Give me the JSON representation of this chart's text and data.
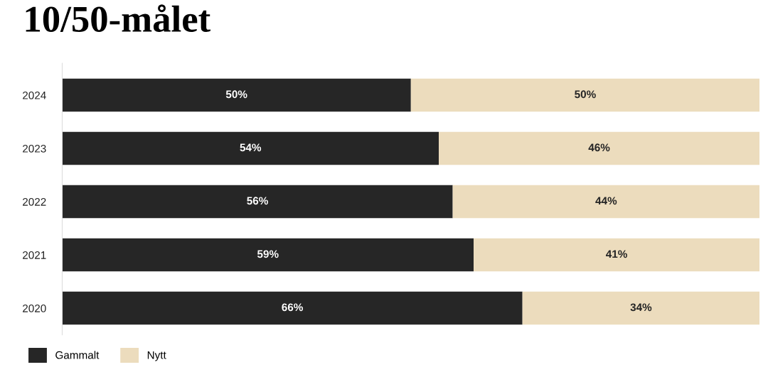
{
  "chart_data": {
    "type": "bar",
    "orientation": "horizontal",
    "stacked": true,
    "title": "10/50-målet",
    "categories": [
      "2024",
      "2023",
      "2022",
      "2021",
      "2020"
    ],
    "series": [
      {
        "name": "Gammalt",
        "color": "#262626",
        "values": [
          50,
          54,
          56,
          59,
          66
        ],
        "value_labels": [
          "50%",
          "54%",
          "56%",
          "59%",
          "66%"
        ]
      },
      {
        "name": "Nytt",
        "color": "#ecdcbd",
        "values": [
          50,
          46,
          44,
          41,
          34
        ],
        "value_labels": [
          "50%",
          "46%",
          "44%",
          "41%",
          "34%"
        ]
      }
    ],
    "xlim": [
      0,
      100
    ],
    "tick_labels": "y",
    "grid": false,
    "legend": "bottom left"
  }
}
